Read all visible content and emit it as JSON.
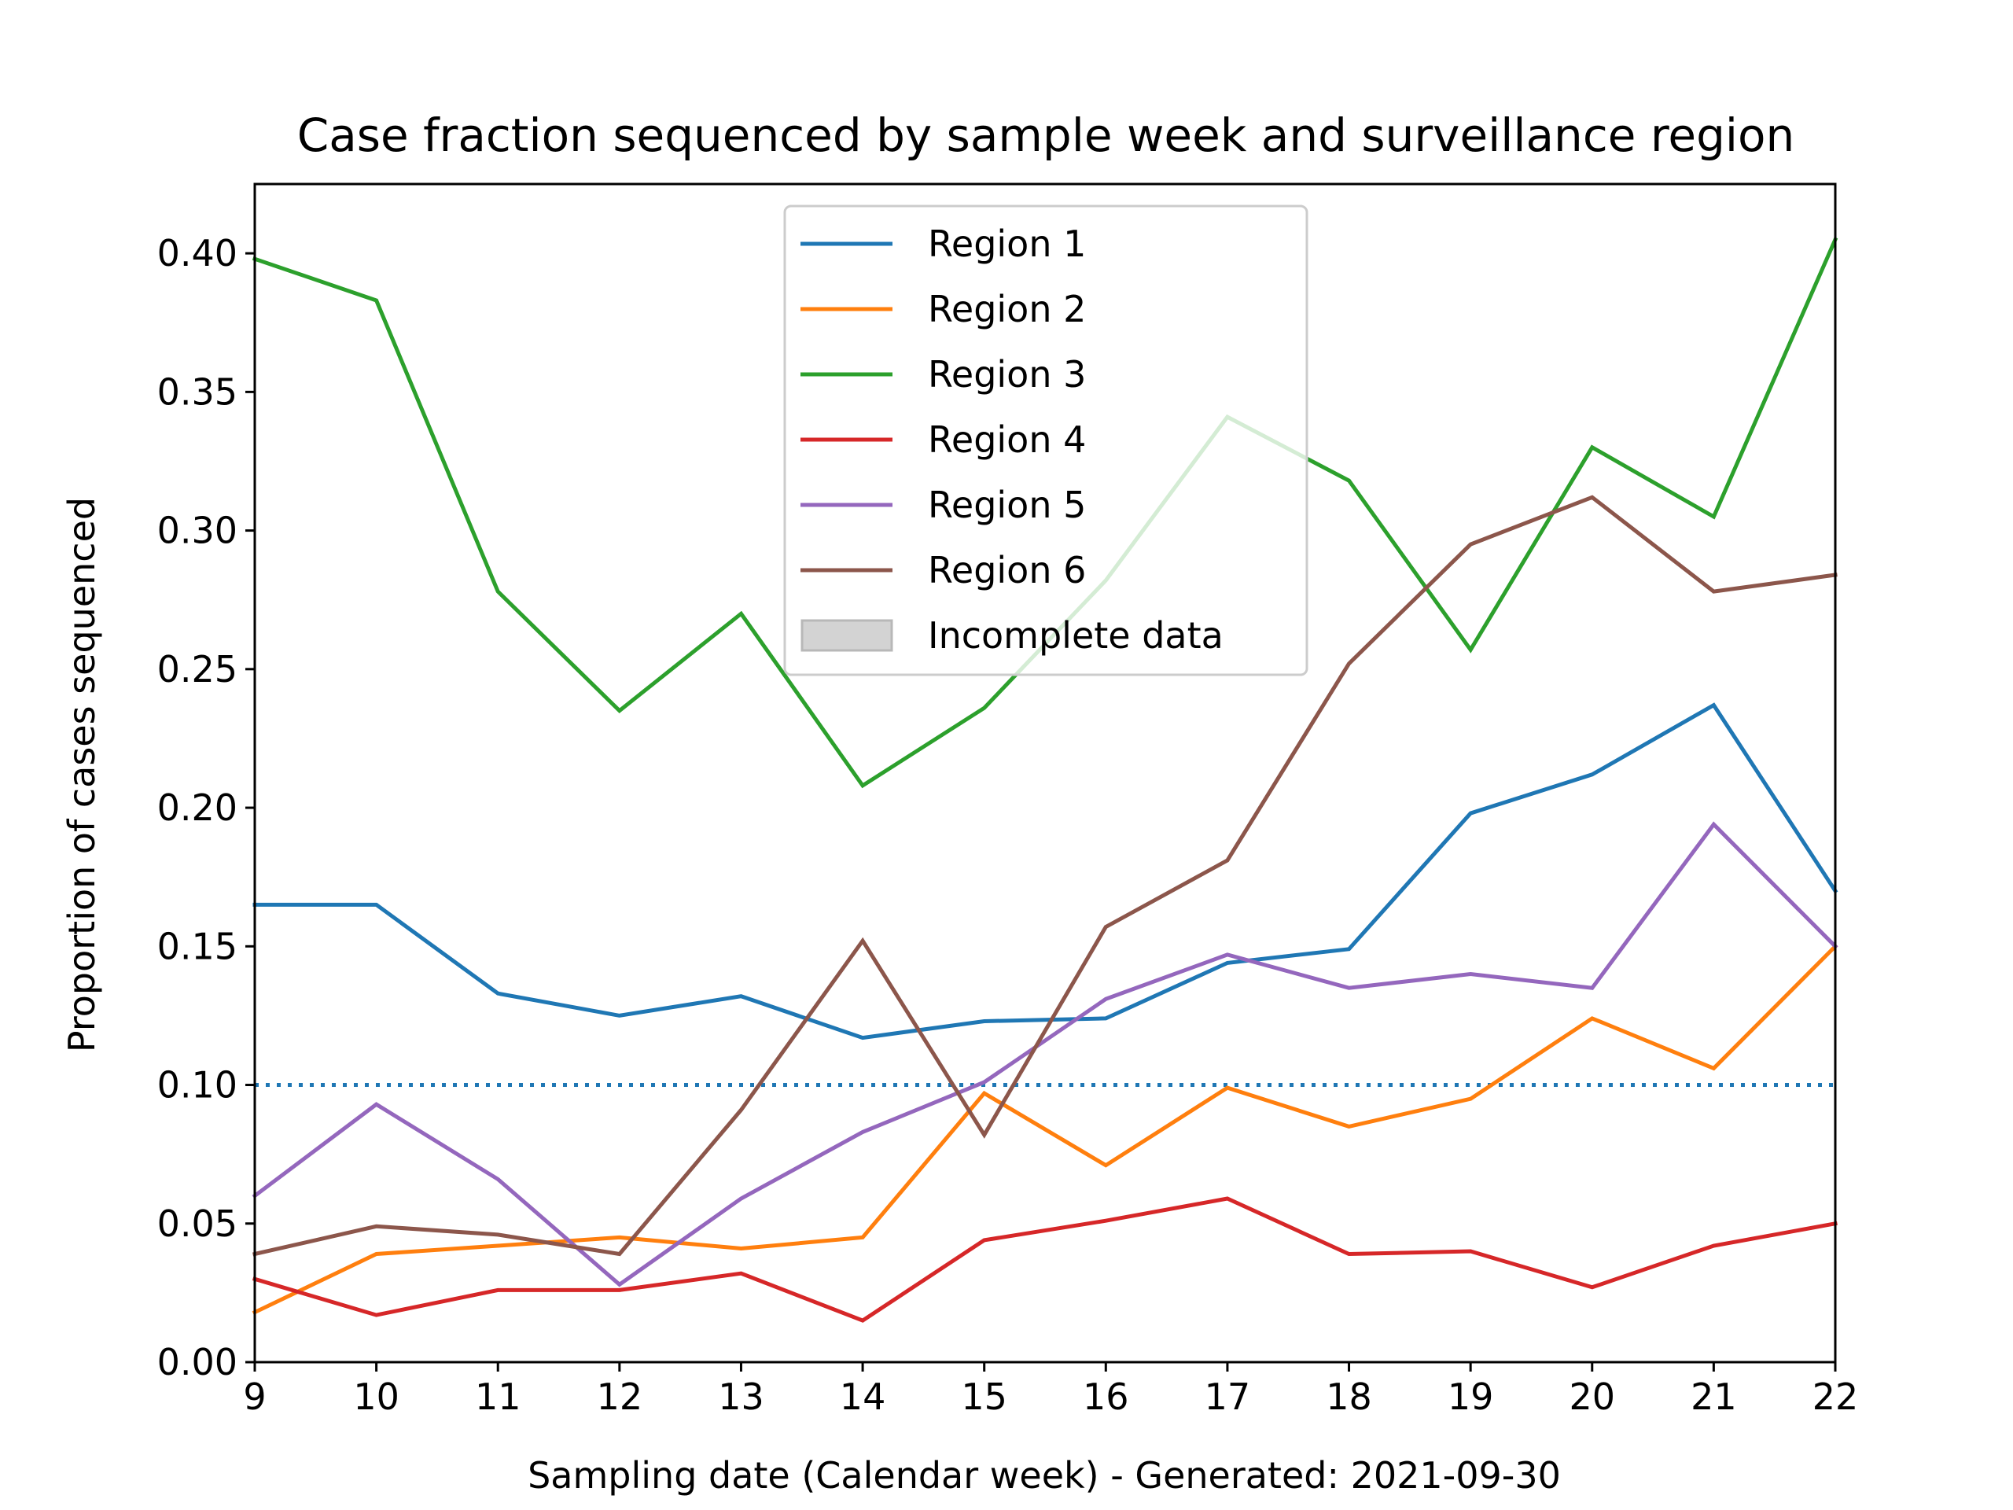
{
  "chart_data": {
    "type": "line",
    "title": "Case fraction sequenced by sample week and surveillance region",
    "xlabel": "Sampling date (Calendar week) - Generated: 2021-09-30",
    "ylabel": "Proportion of cases sequenced",
    "x": [
      9,
      10,
      11,
      12,
      13,
      14,
      15,
      16,
      17,
      18,
      19,
      20,
      21,
      22
    ],
    "xlim": [
      9,
      22
    ],
    "ylim": [
      0,
      0.425
    ],
    "xticks": [
      "9",
      "10",
      "11",
      "12",
      "13",
      "14",
      "15",
      "16",
      "17",
      "18",
      "19",
      "20",
      "21",
      "22"
    ],
    "xtick_values": [
      9,
      10,
      11,
      12,
      13,
      14,
      15,
      16,
      17,
      18,
      19,
      20,
      21,
      22
    ],
    "yticks": [
      "0.00",
      "0.05",
      "0.10",
      "0.15",
      "0.20",
      "0.25",
      "0.30",
      "0.35",
      "0.40"
    ],
    "ytick_values": [
      0,
      0.05,
      0.1,
      0.15,
      0.2,
      0.25,
      0.3,
      0.35,
      0.4
    ],
    "grid": false,
    "legend_position": "top-center",
    "reference_line": {
      "y": 0.1,
      "color": "#1f77b4",
      "style": "dotted"
    },
    "series": [
      {
        "name": "Region 1",
        "color": "#1f77b4",
        "values": [
          0.165,
          0.165,
          0.133,
          0.125,
          0.132,
          0.117,
          0.123,
          0.124,
          0.144,
          0.149,
          0.198,
          0.212,
          0.237,
          0.17
        ]
      },
      {
        "name": "Region 2",
        "color": "#ff7f0e",
        "values": [
          0.018,
          0.039,
          0.042,
          0.045,
          0.041,
          0.045,
          0.097,
          0.071,
          0.099,
          0.085,
          0.095,
          0.124,
          0.106,
          0.15
        ]
      },
      {
        "name": "Region 3",
        "color": "#2ca02c",
        "values": [
          0.398,
          0.383,
          0.278,
          0.235,
          0.27,
          0.208,
          0.236,
          0.282,
          0.341,
          0.318,
          0.257,
          0.33,
          0.305,
          0.405
        ]
      },
      {
        "name": "Region 4",
        "color": "#d62728",
        "values": [
          0.03,
          0.017,
          0.026,
          0.026,
          0.032,
          0.015,
          0.044,
          0.051,
          0.059,
          0.039,
          0.04,
          0.027,
          0.042,
          0.05
        ]
      },
      {
        "name": "Region 5",
        "color": "#9467bd",
        "values": [
          0.06,
          0.093,
          0.066,
          0.028,
          0.059,
          0.083,
          0.101,
          0.131,
          0.147,
          0.135,
          0.14,
          0.135,
          0.194,
          0.15
        ]
      },
      {
        "name": "Region 6",
        "color": "#8c564b",
        "values": [
          0.039,
          0.049,
          0.046,
          0.039,
          0.091,
          0.152,
          0.082,
          0.157,
          0.181,
          0.252,
          0.295,
          0.312,
          0.278,
          0.284
        ]
      }
    ],
    "legend_extra": {
      "name": "Incomplete data",
      "color": "#d3d3d3"
    }
  }
}
